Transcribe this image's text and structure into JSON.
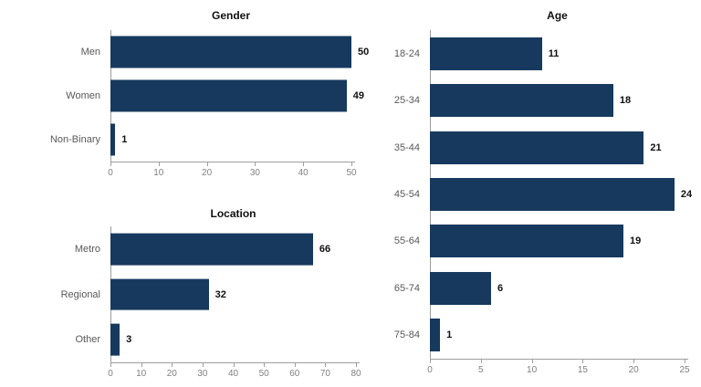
{
  "colors": {
    "background": "#ffffff",
    "bar": "#17395e",
    "title": "#111111",
    "value_label": "#111111",
    "category_label": "#595959",
    "tick_label": "#808080",
    "axis": "#9e9e9e"
  },
  "chart_data": [
    {
      "id": "gender",
      "type": "bar",
      "orientation": "horizontal",
      "title": "Gender",
      "categories": [
        "Men",
        "Women",
        "Non-Binary"
      ],
      "values": [
        50,
        49,
        1
      ],
      "xlim": [
        0,
        50
      ],
      "xticks": [
        0,
        10,
        20,
        30,
        40,
        50
      ],
      "grid": false,
      "legend": false,
      "value_labels": true
    },
    {
      "id": "location",
      "type": "bar",
      "orientation": "horizontal",
      "title": "Location",
      "categories": [
        "Metro",
        "Regional",
        "Other"
      ],
      "values": [
        66,
        32,
        3
      ],
      "xlim": [
        0,
        80
      ],
      "xticks": [
        0,
        10,
        20,
        30,
        40,
        50,
        60,
        70,
        80
      ],
      "grid": false,
      "legend": false,
      "value_labels": true
    },
    {
      "id": "age",
      "type": "bar",
      "orientation": "horizontal",
      "title": "Age",
      "categories": [
        "18-24",
        "25-34",
        "35-44",
        "45-54",
        "55-64",
        "65-74",
        "75-84"
      ],
      "values": [
        11,
        18,
        21,
        24,
        19,
        6,
        1
      ],
      "xlim": [
        0,
        25
      ],
      "xticks": [
        0,
        5,
        10,
        15,
        20,
        25
      ],
      "grid": false,
      "legend": false,
      "value_labels": true
    }
  ]
}
